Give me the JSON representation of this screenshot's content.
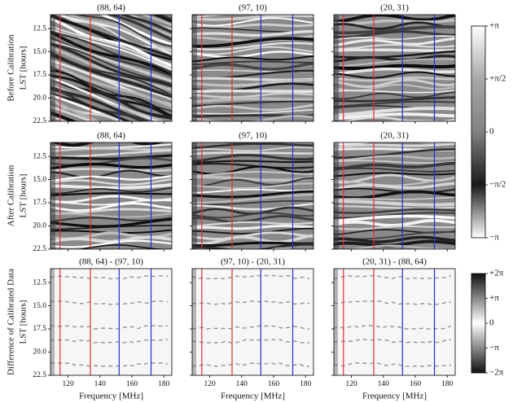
{
  "chart_data": [
    {
      "type": "image",
      "title": "(88, 64)",
      "row_label": "Before Calibration",
      "ylabel": "LST [hours]",
      "xlim": [
        109,
        185
      ],
      "ylim": [
        22.5,
        11
      ],
      "xticks": [
        120,
        140,
        160,
        180
      ],
      "yticks": [
        12.5,
        {
          "value": 15,
          "label": "15.0"
        },
        17.5,
        {
          "value": 20,
          "label": "20.0"
        },
        22.5
      ],
      "vlines": [
        {
          "x": 115,
          "color": "#e03030"
        },
        {
          "x": 134,
          "color": "#e03030"
        },
        {
          "x": 152,
          "color": "#2a2ad0"
        },
        {
          "x": 172,
          "color": "#2a2ad0"
        }
      ]
    },
    {
      "type": "image",
      "title": "(97, 10)",
      "xlim": [
        109,
        185
      ],
      "ylim": [
        22.5,
        11
      ],
      "xticks": [
        120,
        140,
        160,
        180
      ],
      "yticks": [
        12.5,
        {
          "value": 15,
          "label": "15.0"
        },
        17.5,
        {
          "value": 20,
          "label": "20.0"
        },
        22.5
      ],
      "vlines": [
        {
          "x": 115,
          "color": "#e03030"
        },
        {
          "x": 134,
          "color": "#e03030"
        },
        {
          "x": 152,
          "color": "#2a2ad0"
        },
        {
          "x": 172,
          "color": "#2a2ad0"
        }
      ]
    },
    {
      "type": "image",
      "title": "(20, 31)",
      "xlim": [
        109,
        185
      ],
      "ylim": [
        22.5,
        11
      ],
      "xticks": [
        120,
        140,
        160,
        180
      ],
      "yticks": [
        12.5,
        {
          "value": 15,
          "label": "15.0"
        },
        17.5,
        {
          "value": 20,
          "label": "20.0"
        },
        22.5
      ],
      "vlines": [
        {
          "x": 115,
          "color": "#e03030"
        },
        {
          "x": 134,
          "color": "#e03030"
        },
        {
          "x": 152,
          "color": "#2a2ad0"
        },
        {
          "x": 172,
          "color": "#2a2ad0"
        }
      ]
    },
    {
      "type": "image",
      "title": "(88, 64)",
      "row_label": "After Calibration",
      "ylabel": "LST [hours]",
      "xlim": [
        109,
        185
      ],
      "ylim": [
        22.5,
        11
      ],
      "xticks": [
        120,
        140,
        160,
        180
      ],
      "yticks": [
        12.5,
        {
          "value": 15,
          "label": "15.0"
        },
        17.5,
        {
          "value": 20,
          "label": "20.0"
        },
        22.5
      ],
      "vlines": [
        {
          "x": 115,
          "color": "#e03030"
        },
        {
          "x": 134,
          "color": "#e03030"
        },
        {
          "x": 152,
          "color": "#2a2ad0"
        },
        {
          "x": 172,
          "color": "#2a2ad0"
        }
      ]
    },
    {
      "type": "image",
      "title": "(97, 10)",
      "xlim": [
        109,
        185
      ],
      "ylim": [
        22.5,
        11
      ],
      "xticks": [
        120,
        140,
        160,
        180
      ],
      "yticks": [
        12.5,
        {
          "value": 15,
          "label": "15.0"
        },
        17.5,
        {
          "value": 20,
          "label": "20.0"
        },
        22.5
      ],
      "vlines": [
        {
          "x": 115,
          "color": "#e03030"
        },
        {
          "x": 134,
          "color": "#e03030"
        },
        {
          "x": 152,
          "color": "#2a2ad0"
        },
        {
          "x": 172,
          "color": "#2a2ad0"
        }
      ]
    },
    {
      "type": "image",
      "title": "(20, 31)",
      "xlim": [
        109,
        185
      ],
      "ylim": [
        22.5,
        11
      ],
      "xticks": [
        120,
        140,
        160,
        180
      ],
      "yticks": [
        12.5,
        {
          "value": 15,
          "label": "15.0"
        },
        17.5,
        {
          "value": 20,
          "label": "20.0"
        },
        22.5
      ],
      "vlines": [
        {
          "x": 115,
          "color": "#e03030"
        },
        {
          "x": 134,
          "color": "#e03030"
        },
        {
          "x": 152,
          "color": "#2a2ad0"
        },
        {
          "x": 172,
          "color": "#2a2ad0"
        }
      ]
    },
    {
      "type": "difference",
      "title": "(88, 64) - (97, 10)",
      "row_label": "Difference of Calibrated Data",
      "ylabel": "LST [hours]",
      "xlabel": "Frequency [MHz]",
      "xlim": [
        109,
        185
      ],
      "ylim": [
        22.5,
        11
      ],
      "xticks": [
        120,
        140,
        160,
        180
      ],
      "yticks": [
        12.5,
        {
          "value": 15,
          "label": "15.0"
        },
        17.5,
        {
          "value": 20,
          "label": "20.0"
        },
        22.5
      ],
      "vlines": [
        {
          "x": 115,
          "color": "#e03030"
        },
        {
          "x": 134,
          "color": "#e03030"
        },
        {
          "x": 152,
          "color": "#2a2ad0"
        },
        {
          "x": 172,
          "color": "#2a2ad0"
        }
      ]
    },
    {
      "type": "difference",
      "title": "(97, 10) - (20, 31)",
      "xlabel": "Frequency [MHz]",
      "xlim": [
        109,
        185
      ],
      "ylim": [
        22.5,
        11
      ],
      "xticks": [
        120,
        140,
        160,
        180
      ],
      "yticks": [
        12.5,
        {
          "value": 15,
          "label": "15.0"
        },
        17.5,
        {
          "value": 20,
          "label": "20.0"
        },
        22.5
      ],
      "vlines": [
        {
          "x": 115,
          "color": "#e03030"
        },
        {
          "x": 134,
          "color": "#e03030"
        },
        {
          "x": 152,
          "color": "#2a2ad0"
        },
        {
          "x": 172,
          "color": "#2a2ad0"
        }
      ]
    },
    {
      "type": "difference",
      "title": "(20, 31) - (88, 64)",
      "xlabel": "Frequency [MHz]",
      "xlim": [
        109,
        185
      ],
      "ylim": [
        22.5,
        11
      ],
      "xticks": [
        120,
        140,
        160,
        180
      ],
      "yticks": [
        12.5,
        {
          "value": 15,
          "label": "15.0"
        },
        17.5,
        {
          "value": 20,
          "label": "20.0"
        },
        22.5
      ],
      "vlines": [
        {
          "x": 115,
          "color": "#e03030"
        },
        {
          "x": 134,
          "color": "#e03030"
        },
        {
          "x": 152,
          "color": "#2a2ad0"
        },
        {
          "x": 172,
          "color": "#2a2ad0"
        }
      ]
    }
  ],
  "colorbars": [
    {
      "kind": "phase",
      "ylim": [
        -3.14159,
        3.14159
      ],
      "ticks": [
        {
          "value": 3.14159,
          "label": "+π"
        },
        {
          "value": 1.5708,
          "label": "+π/2"
        },
        0,
        {
          "value": -1.5708,
          "label": "−π/2"
        },
        {
          "value": -3.14159,
          "label": "−π"
        }
      ]
    },
    {
      "kind": "difference",
      "ylim": [
        -6.28319,
        6.28319
      ],
      "ticks": [
        {
          "value": 6.28319,
          "label": "+2π"
        },
        {
          "value": 3.14159,
          "label": "+π"
        },
        0,
        {
          "value": -3.14159,
          "label": "−π"
        },
        {
          "value": -6.28319,
          "label": "−2π"
        }
      ]
    }
  ]
}
